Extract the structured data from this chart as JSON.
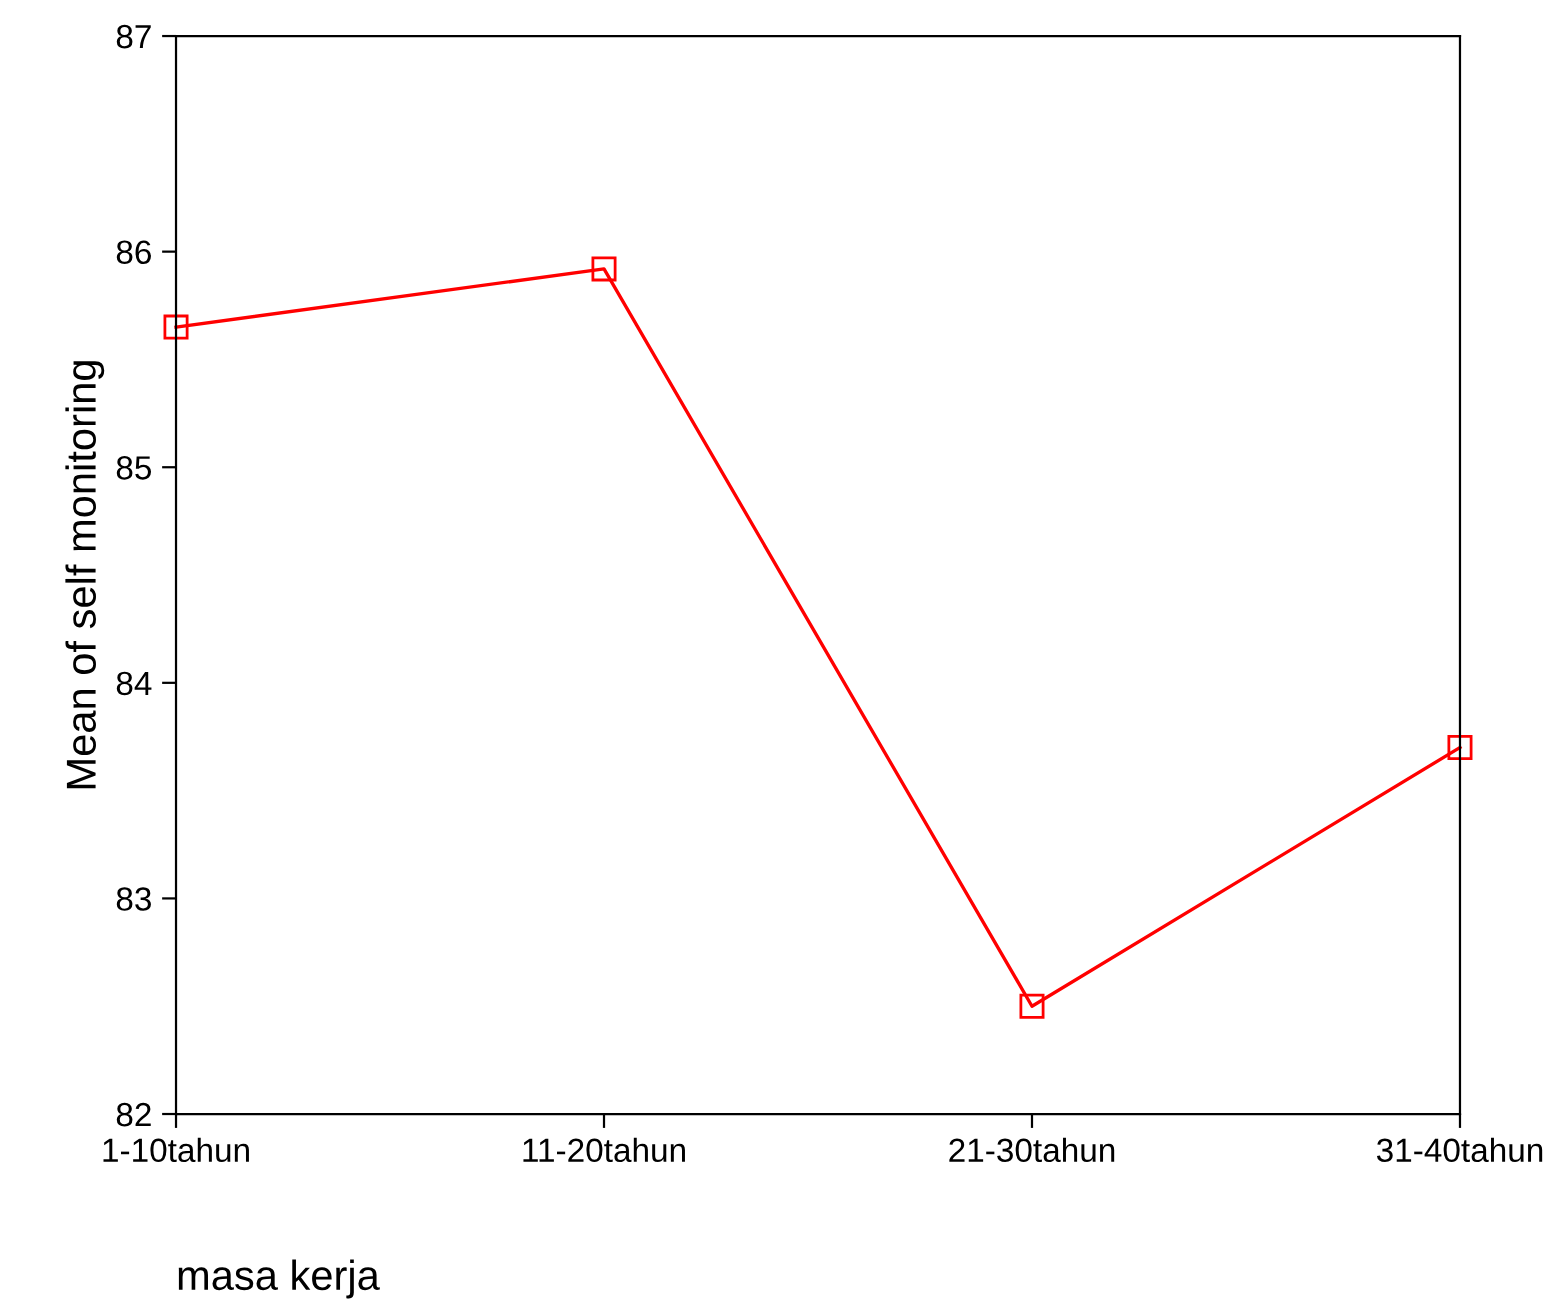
{
  "chart_data": {
    "type": "line",
    "xlabel": "masa kerja",
    "ylabel": "Mean of self monitoring",
    "categories": [
      "1-10tahun",
      "11-20tahun",
      "21-30tahun",
      "31-40tahun"
    ],
    "series": [
      {
        "color": "#ff0000",
        "values": [
          85.65,
          85.92,
          82.5,
          83.7
        ]
      }
    ],
    "ylim": [
      82,
      87
    ],
    "yticks": [
      82,
      83,
      84,
      85,
      86,
      87
    ],
    "marker": "square",
    "line_style": "solid",
    "grid": false,
    "legend": false
  }
}
